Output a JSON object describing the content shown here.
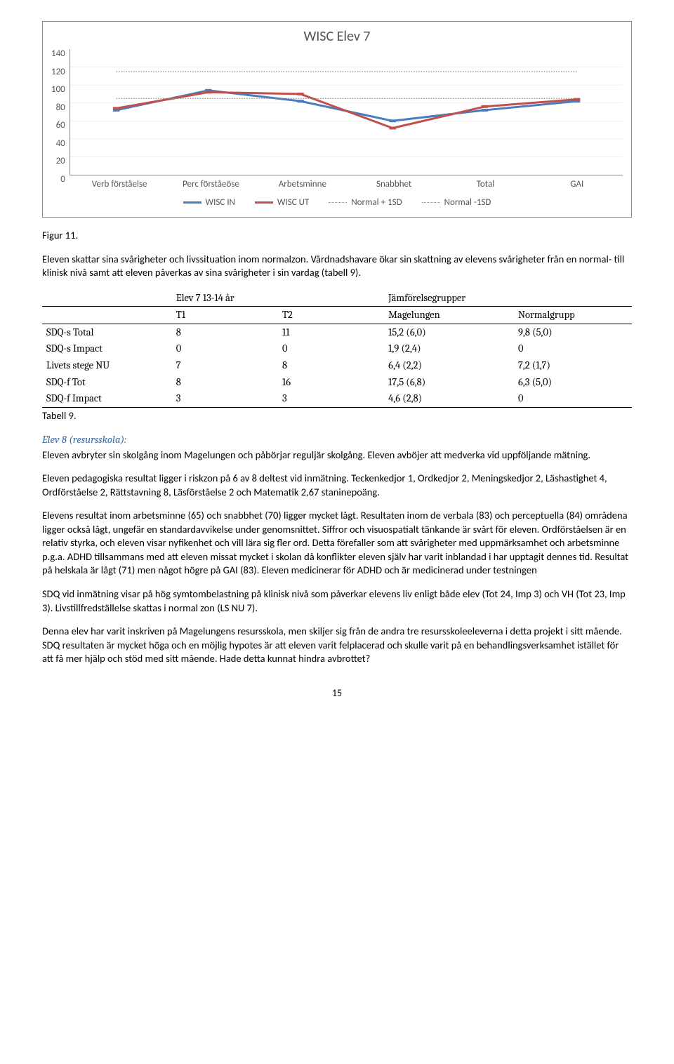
{
  "chart": {
    "title": "WISC Elev 7",
    "type": "line",
    "ylim": [
      0,
      140
    ],
    "ytick_step": 20,
    "yticks": [
      "140",
      "120",
      "100",
      "80",
      "60",
      "40",
      "20",
      "0"
    ],
    "categories": [
      "Verb förståelse",
      "Perc förståeöse",
      "Arbetsminne",
      "Snabbhet",
      "Total",
      "GAI"
    ],
    "series": [
      {
        "name": "WISC IN",
        "color": "#4a7cc0",
        "width": 3,
        "values": [
          72,
          94,
          82,
          60,
          72,
          82
        ]
      },
      {
        "name": "WISC UT",
        "color": "#c0504d",
        "width": 3,
        "values": [
          74,
          92,
          90,
          52,
          76,
          84
        ]
      },
      {
        "name": "Normal + 1SD",
        "style": "dotted",
        "color": "#888",
        "values": [
          115,
          115,
          115,
          115,
          115,
          115
        ]
      },
      {
        "name": "Normal -1SD",
        "style": "dotted",
        "color": "#888",
        "values": [
          85,
          85,
          85,
          85,
          85,
          85
        ]
      }
    ],
    "legend": [
      "WISC IN",
      "WISC UT",
      "Normal + 1SD",
      "Normal -1SD"
    ]
  },
  "figLabel": "Figur 11.",
  "para1": "Eleven skattar sina svårigheter och livssituation inom normalzon. Vårdnadshavare ökar sin skattning av elevens svårigheter från en normal- till klinisk nivå samt att eleven påverkas av sina svårigheter i sin vardag (tabell 9).",
  "table": {
    "groupHead1": "Elev 7 13-14 år",
    "groupHead2": "Jämförelsegrupper",
    "cols": [
      "",
      "T1",
      "T2",
      "Magelungen",
      "Normalgrupp"
    ],
    "rows": [
      [
        "SDQ-s Total",
        "8",
        "11",
        "15,2 (6,0)",
        "9,8 (5,0)"
      ],
      [
        "SDQ-s Impact",
        "0",
        "0",
        "1,9 (2,4)",
        "0"
      ],
      [
        "Livets stege NU",
        "7",
        "8",
        "6,4 (2,2)",
        "7,2 (1,7)"
      ],
      [
        "SDQ-f Tot",
        "8",
        "16",
        "17,5 (6,8)",
        "6,3 (5,0)"
      ],
      [
        "SDQ-f Impact",
        "3",
        "3",
        "4,6 (2,8)",
        "0"
      ]
    ],
    "caption": "Tabell 9."
  },
  "subhead": "Elev 8 (resursskola):",
  "para2": "Eleven avbryter sin skolgång inom Magelungen och påbörjar reguljär skolgång. Eleven avböjer att medverka vid uppföljande mätning.",
  "para3": "Eleven pedagogiska resultat ligger i riskzon på 6 av 8 deltest vid inmätning. Teckenkedjor 1, Ordkedjor 2, Meningskedjor 2, Läshastighet 4, Ordförståelse 2, Rättstavning 8, Läsförståelse 2 och Matematik 2,67 staninepoäng.",
  "para4": "Elevens resultat inom arbetsminne (65) och snabbhet (70) ligger mycket lågt. Resultaten inom de verbala (83) och perceptuella (84) områdena ligger också lågt, ungefär en standardavvikelse under genomsnittet. Siffror och visuospatialt tänkande är svårt för eleven. Ordförståelsen är en relativ styrka, och eleven visar nyfikenhet och vill lära sig fler ord. Detta förefaller som att svårigheter med uppmärksamhet och arbetsminne p.g.a. ADHD tillsammans med att eleven missat mycket i skolan då konflikter eleven själv har varit inblandad i har upptagit dennes tid. Resultat på helskala är lågt (71) men något högre på GAI (83). Eleven medicinerar för ADHD och är medicinerad under testningen",
  "para5": "SDQ vid inmätning visar på hög symtombelastning på klinisk nivå som påverkar elevens liv enligt både elev (Tot 24, Imp 3) och VH (Tot 23, Imp 3). Livstillfredställelse skattas i normal zon (LS NU 7).",
  "para6": "Denna elev har varit inskriven på Magelungens resursskola, men skiljer sig från de andra tre resursskoleeleverna i detta projekt i sitt mående. SDQ resultaten är mycket höga och en möjlig hypotes är att eleven varit felplacerad och skulle varit på en behandlingsverksamhet istället för att få mer hjälp och stöd med sitt mående. Hade detta kunnat hindra avbrottet?",
  "pageNum": "15"
}
